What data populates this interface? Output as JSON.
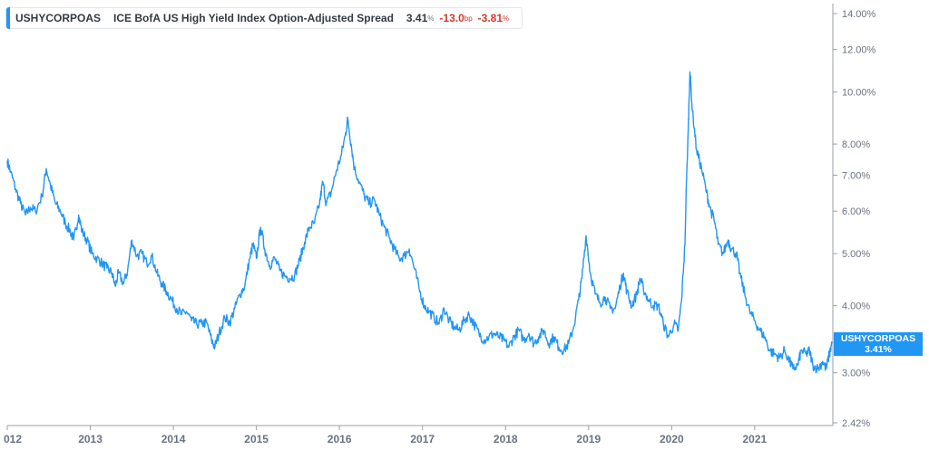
{
  "legend": {
    "symbol": "USHYCORPOAS",
    "name": "ICE BofA US High Yield Index Option-Adjusted Spread",
    "value": "3.41",
    "value_unit": "%",
    "change_bp": "-13.0",
    "change_bp_unit": "bp",
    "change_pct": "-3.81",
    "change_pct_unit": "%"
  },
  "last_tag": {
    "symbol": "USHYCORPOAS",
    "value": "3.41%"
  },
  "colors": {
    "series": "#2196f3",
    "negative": "#d33a2c",
    "axis_text": "#6b7280"
  },
  "chart_data": {
    "type": "line",
    "yscale": "log",
    "ylim": [
      2.42,
      14.5
    ],
    "xlim": [
      2012.0,
      2021.93
    ],
    "y_ticks": [
      "14.00%",
      "12.00%",
      "10.00%",
      "8.00%",
      "7.00%",
      "6.00%",
      "5.00%",
      "4.00%",
      "3.00%",
      "2.42%"
    ],
    "y_tick_values": [
      14,
      12,
      10,
      8,
      7,
      6,
      5,
      4,
      3,
      2.42
    ],
    "x_ticks": [
      "012",
      "2013",
      "2014",
      "2015",
      "2016",
      "2017",
      "2018",
      "2019",
      "2020",
      "2021"
    ],
    "x_tick_values": [
      2012.0,
      2013,
      2014,
      2015,
      2016,
      2017,
      2018,
      2019,
      2020,
      2021
    ],
    "grid": false,
    "series": [
      {
        "name": "USHYCORPOAS",
        "points": [
          [
            2012.0,
            7.45
          ],
          [
            2012.04,
            7.1
          ],
          [
            2012.1,
            6.6
          ],
          [
            2012.16,
            6.2
          ],
          [
            2012.22,
            5.9
          ],
          [
            2012.28,
            6.1
          ],
          [
            2012.34,
            6.0
          ],
          [
            2012.42,
            6.4
          ],
          [
            2012.47,
            7.2
          ],
          [
            2012.52,
            6.7
          ],
          [
            2012.58,
            6.2
          ],
          [
            2012.64,
            6.0
          ],
          [
            2012.7,
            5.7
          ],
          [
            2012.76,
            5.5
          ],
          [
            2012.8,
            5.3
          ],
          [
            2012.86,
            5.9
          ],
          [
            2012.9,
            5.5
          ],
          [
            2012.96,
            5.3
          ],
          [
            2013.02,
            5.0
          ],
          [
            2013.08,
            4.9
          ],
          [
            2013.14,
            4.8
          ],
          [
            2013.2,
            4.7
          ],
          [
            2013.26,
            4.6
          ],
          [
            2013.3,
            4.35
          ],
          [
            2013.34,
            4.6
          ],
          [
            2013.4,
            4.4
          ],
          [
            2013.45,
            4.65
          ],
          [
            2013.5,
            5.3
          ],
          [
            2013.56,
            4.95
          ],
          [
            2013.62,
            5.0
          ],
          [
            2013.68,
            4.8
          ],
          [
            2013.74,
            4.95
          ],
          [
            2013.8,
            4.6
          ],
          [
            2013.86,
            4.4
          ],
          [
            2013.92,
            4.25
          ],
          [
            2013.98,
            4.1
          ],
          [
            2014.04,
            3.95
          ],
          [
            2014.1,
            3.85
          ],
          [
            2014.16,
            3.9
          ],
          [
            2014.22,
            3.75
          ],
          [
            2014.28,
            3.7
          ],
          [
            2014.34,
            3.7
          ],
          [
            2014.4,
            3.72
          ],
          [
            2014.46,
            3.45
          ],
          [
            2014.5,
            3.35
          ],
          [
            2014.55,
            3.55
          ],
          [
            2014.62,
            3.8
          ],
          [
            2014.68,
            3.72
          ],
          [
            2014.74,
            3.95
          ],
          [
            2014.8,
            4.2
          ],
          [
            2014.86,
            4.35
          ],
          [
            2014.92,
            4.9
          ],
          [
            2014.96,
            5.2
          ],
          [
            2015.0,
            4.9
          ],
          [
            2015.05,
            5.6
          ],
          [
            2015.1,
            5.1
          ],
          [
            2015.16,
            4.75
          ],
          [
            2015.22,
            4.9
          ],
          [
            2015.28,
            4.65
          ],
          [
            2015.34,
            4.55
          ],
          [
            2015.4,
            4.5
          ],
          [
            2015.46,
            4.55
          ],
          [
            2015.52,
            4.85
          ],
          [
            2015.58,
            5.25
          ],
          [
            2015.64,
            5.6
          ],
          [
            2015.7,
            5.7
          ],
          [
            2015.76,
            6.2
          ],
          [
            2015.8,
            6.8
          ],
          [
            2015.84,
            6.2
          ],
          [
            2015.9,
            6.5
          ],
          [
            2015.96,
            7.1
          ],
          [
            2016.02,
            7.6
          ],
          [
            2016.07,
            8.3
          ],
          [
            2016.1,
            8.9
          ],
          [
            2016.14,
            8.0
          ],
          [
            2016.18,
            7.2
          ],
          [
            2016.24,
            6.8
          ],
          [
            2016.3,
            6.4
          ],
          [
            2016.36,
            6.2
          ],
          [
            2016.42,
            6.3
          ],
          [
            2016.48,
            5.9
          ],
          [
            2016.54,
            5.6
          ],
          [
            2016.6,
            5.35
          ],
          [
            2016.66,
            5.1
          ],
          [
            2016.72,
            4.9
          ],
          [
            2016.78,
            4.95
          ],
          [
            2016.84,
            5.1
          ],
          [
            2016.9,
            4.7
          ],
          [
            2016.96,
            4.3
          ],
          [
            2017.02,
            4.0
          ],
          [
            2017.08,
            3.9
          ],
          [
            2017.14,
            3.8
          ],
          [
            2017.2,
            3.7
          ],
          [
            2017.26,
            3.95
          ],
          [
            2017.32,
            3.75
          ],
          [
            2017.38,
            3.65
          ],
          [
            2017.44,
            3.6
          ],
          [
            2017.5,
            3.75
          ],
          [
            2017.56,
            3.85
          ],
          [
            2017.62,
            3.7
          ],
          [
            2017.68,
            3.55
          ],
          [
            2017.74,
            3.45
          ],
          [
            2017.8,
            3.5
          ],
          [
            2017.86,
            3.55
          ],
          [
            2017.92,
            3.5
          ],
          [
            2017.98,
            3.45
          ],
          [
            2018.04,
            3.35
          ],
          [
            2018.1,
            3.5
          ],
          [
            2018.16,
            3.6
          ],
          [
            2018.22,
            3.45
          ],
          [
            2018.28,
            3.55
          ],
          [
            2018.34,
            3.4
          ],
          [
            2018.4,
            3.5
          ],
          [
            2018.46,
            3.6
          ],
          [
            2018.52,
            3.4
          ],
          [
            2018.58,
            3.5
          ],
          [
            2018.64,
            3.35
          ],
          [
            2018.7,
            3.3
          ],
          [
            2018.76,
            3.4
          ],
          [
            2018.82,
            3.65
          ],
          [
            2018.88,
            4.1
          ],
          [
            2018.92,
            4.5
          ],
          [
            2018.97,
            5.4
          ],
          [
            2019.02,
            4.6
          ],
          [
            2019.08,
            4.2
          ],
          [
            2019.14,
            4.05
          ],
          [
            2019.2,
            4.15
          ],
          [
            2019.26,
            3.95
          ],
          [
            2019.32,
            3.95
          ],
          [
            2019.38,
            4.35
          ],
          [
            2019.42,
            4.6
          ],
          [
            2019.46,
            4.25
          ],
          [
            2019.52,
            4.0
          ],
          [
            2019.58,
            4.2
          ],
          [
            2019.62,
            4.5
          ],
          [
            2019.66,
            4.3
          ],
          [
            2019.72,
            4.1
          ],
          [
            2019.78,
            4.0
          ],
          [
            2019.84,
            4.0
          ],
          [
            2019.9,
            3.7
          ],
          [
            2019.96,
            3.5
          ],
          [
            2020.03,
            3.7
          ],
          [
            2020.08,
            3.6
          ],
          [
            2020.12,
            4.1
          ],
          [
            2020.16,
            5.2
          ],
          [
            2020.2,
            8.5
          ],
          [
            2020.22,
            10.9
          ],
          [
            2020.25,
            9.2
          ],
          [
            2020.3,
            7.8
          ],
          [
            2020.36,
            7.2
          ],
          [
            2020.42,
            6.5
          ],
          [
            2020.46,
            6.1
          ],
          [
            2020.52,
            5.7
          ],
          [
            2020.56,
            5.2
          ],
          [
            2020.62,
            5.0
          ],
          [
            2020.68,
            5.3
          ],
          [
            2020.72,
            5.1
          ],
          [
            2020.78,
            5.0
          ],
          [
            2020.82,
            4.6
          ],
          [
            2020.88,
            4.2
          ],
          [
            2020.94,
            3.9
          ],
          [
            2021.0,
            3.75
          ],
          [
            2021.06,
            3.6
          ],
          [
            2021.12,
            3.5
          ],
          [
            2021.18,
            3.3
          ],
          [
            2021.24,
            3.25
          ],
          [
            2021.3,
            3.2
          ],
          [
            2021.36,
            3.3
          ],
          [
            2021.42,
            3.15
          ],
          [
            2021.46,
            3.05
          ],
          [
            2021.52,
            3.1
          ],
          [
            2021.56,
            3.3
          ],
          [
            2021.62,
            3.25
          ],
          [
            2021.66,
            3.3
          ],
          [
            2021.7,
            3.1
          ],
          [
            2021.76,
            3.05
          ],
          [
            2021.82,
            3.15
          ],
          [
            2021.86,
            3.05
          ],
          [
            2021.9,
            3.25
          ],
          [
            2021.93,
            3.41
          ]
        ]
      }
    ],
    "last_value": 3.41
  }
}
